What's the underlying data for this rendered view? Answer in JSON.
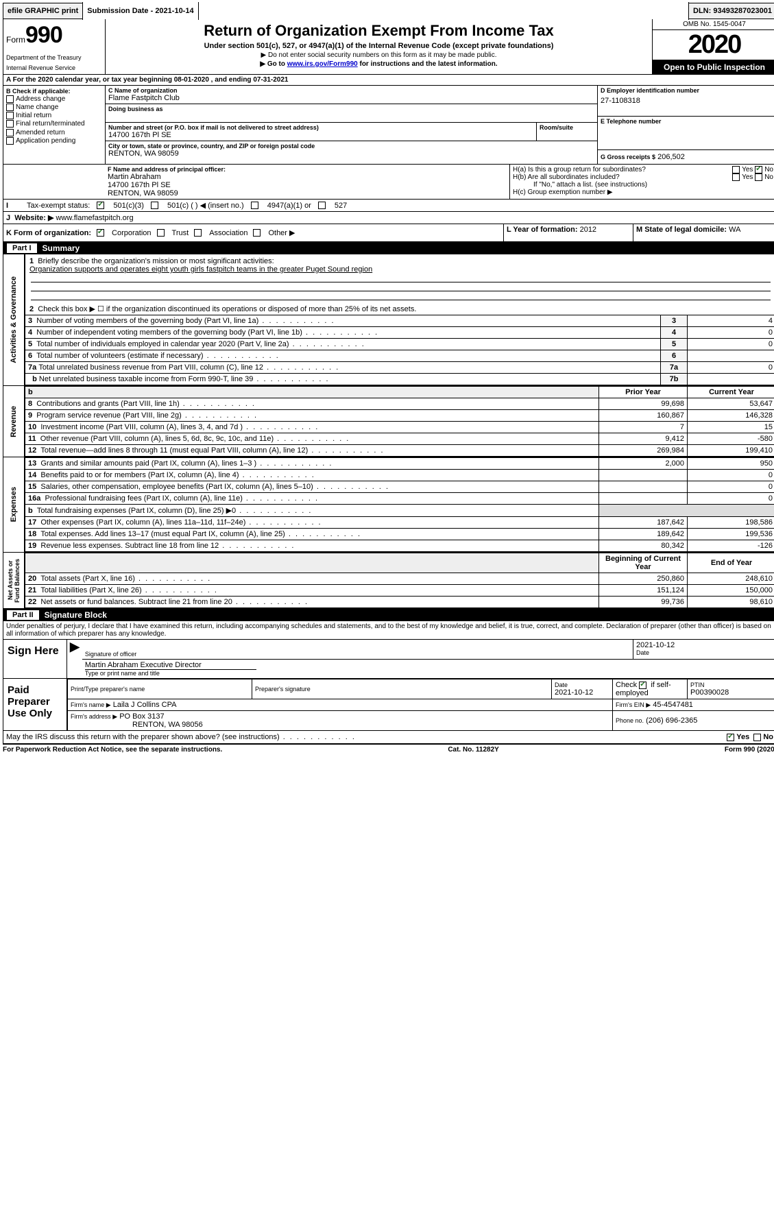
{
  "top": {
    "efile": "efile GRAPHIC print",
    "sub_label": "Submission Date - 2021-10-14",
    "dln": "DLN: 93493287023001"
  },
  "header": {
    "form_word": "Form",
    "form_no": "990",
    "dept1": "Department of the Treasury",
    "dept2": "Internal Revenue Service",
    "title": "Return of Organization Exempt From Income Tax",
    "sub": "Under section 501(c), 527, or 4947(a)(1) of the Internal Revenue Code (except private foundations)",
    "sub2": "▶ Do not enter social security numbers on this form as it may be made public.",
    "sub3a": "▶ Go to ",
    "sub3b": "www.irs.gov/Form990",
    "sub3c": " for instructions and the latest information.",
    "omb": "OMB No. 1545-0047",
    "year": "2020",
    "open": "Open to Public Inspection"
  },
  "a": {
    "line": "A For the 2020 calendar year, or tax year beginning 08-01-2020    , and ending 07-31-2021"
  },
  "b": {
    "label": "B Check if applicable:",
    "opts": [
      "Address change",
      "Name change",
      "Initial return",
      "Final return/terminated",
      "Amended return",
      "Application pending"
    ]
  },
  "c": {
    "label": "C Name of organization",
    "name": "Flame Fastpitch Club",
    "dba_label": "Doing business as",
    "addr_label": "Number and street (or P.O. box if mail is not delivered to street address)",
    "room_label": "Room/suite",
    "addr": "14700 167th Pl SE",
    "city_label": "City or town, state or province, country, and ZIP or foreign postal code",
    "city": "RENTON, WA  98059"
  },
  "d": {
    "label": "D Employer identification number",
    "val": "27-1108318"
  },
  "e": {
    "label": "E Telephone number",
    "val": ""
  },
  "f": {
    "label": "F  Name and address of principal officer:",
    "name": "Martin Abraham",
    "addr": "14700 167th Pl SE",
    "city": "RENTON, WA  98059"
  },
  "g": {
    "label": "G Gross receipts $",
    "val": "206,502"
  },
  "h": {
    "a": "H(a)  Is this a group return for subordinates?",
    "b": "H(b)  Are all subordinates included?",
    "b2": "If \"No,\" attach a list. (see instructions)",
    "c": "H(c)  Group exemption number ▶",
    "yes": "Yes",
    "no": "No"
  },
  "i": {
    "label": "Tax-exempt status:",
    "o1": "501(c)(3)",
    "o2": "501(c) (   ) ◀ (insert no.)",
    "o3": "4947(a)(1) or",
    "o4": "527"
  },
  "j": {
    "label": "Website: ▶",
    "val": "www.flamefastpitch.org"
  },
  "k": {
    "label": "K Form of organization:",
    "o1": "Corporation",
    "o2": "Trust",
    "o3": "Association",
    "o4": "Other ▶"
  },
  "l": {
    "label": "L Year of formation:",
    "val": "2012"
  },
  "m": {
    "label": "M State of legal domicile:",
    "val": "WA"
  },
  "part1": {
    "label": "Part I",
    "title": "Summary"
  },
  "sideA": "Activities & Governance",
  "sideR": "Revenue",
  "sideE": "Expenses",
  "sideN": "Net Assets or Fund Balances",
  "gov": {
    "l1": "Briefly describe the organization's mission or most significant activities:",
    "l1b": "Organization supports and operates eight youth girls fastpitch teams in the greater Puget Sound region",
    "l2": "Check this box ▶ ☐  if the organization discontinued its operations or disposed of more than 25% of its net assets.",
    "l3": "Number of voting members of the governing body (Part VI, line 1a)",
    "l3v": "4",
    "l4": "Number of independent voting members of the governing body (Part VI, line 1b)",
    "l4v": "0",
    "l5": "Total number of individuals employed in calendar year 2020 (Part V, line 2a)",
    "l5v": "0",
    "l6": "Total number of volunteers (estimate if necessary)",
    "l6v": "",
    "l7a": "Total unrelated business revenue from Part VIII, column (C), line 12",
    "l7av": "0",
    "l7b": "Net unrelated business taxable income from Form 990-T, line 39",
    "l7bv": ""
  },
  "cols": {
    "prior": "Prior Year",
    "current": "Current Year",
    "begin": "Beginning of Current Year",
    "end": "End of Year"
  },
  "rev": [
    {
      "n": "8",
      "d": "Contributions and grants (Part VIII, line 1h)",
      "p": "99,698",
      "c": "53,647"
    },
    {
      "n": "9",
      "d": "Program service revenue (Part VIII, line 2g)",
      "p": "160,867",
      "c": "146,328"
    },
    {
      "n": "10",
      "d": "Investment income (Part VIII, column (A), lines 3, 4, and 7d )",
      "p": "7",
      "c": "15"
    },
    {
      "n": "11",
      "d": "Other revenue (Part VIII, column (A), lines 5, 6d, 8c, 9c, 10c, and 11e)",
      "p": "9,412",
      "c": "-580"
    },
    {
      "n": "12",
      "d": "Total revenue—add lines 8 through 11 (must equal Part VIII, column (A), line 12)",
      "p": "269,984",
      "c": "199,410"
    }
  ],
  "exp": [
    {
      "n": "13",
      "d": "Grants and similar amounts paid (Part IX, column (A), lines 1–3 )",
      "p": "2,000",
      "c": "950"
    },
    {
      "n": "14",
      "d": "Benefits paid to or for members (Part IX, column (A), line 4)",
      "p": "",
      "c": "0"
    },
    {
      "n": "15",
      "d": "Salaries, other compensation, employee benefits (Part IX, column (A), lines 5–10)",
      "p": "",
      "c": "0"
    },
    {
      "n": "16a",
      "d": "Professional fundraising fees (Part IX, column (A), line 11e)",
      "p": "",
      "c": "0"
    },
    {
      "n": "b",
      "d": "Total fundraising expenses (Part IX, column (D), line 25) ▶0",
      "p": null,
      "c": null
    },
    {
      "n": "17",
      "d": "Other expenses (Part IX, column (A), lines 11a–11d, 11f–24e)",
      "p": "187,642",
      "c": "198,586"
    },
    {
      "n": "18",
      "d": "Total expenses. Add lines 13–17 (must equal Part IX, column (A), line 25)",
      "p": "189,642",
      "c": "199,536"
    },
    {
      "n": "19",
      "d": "Revenue less expenses. Subtract line 18 from line 12",
      "p": "80,342",
      "c": "-126"
    }
  ],
  "net": [
    {
      "n": "20",
      "d": "Total assets (Part X, line 16)",
      "p": "250,860",
      "c": "248,610"
    },
    {
      "n": "21",
      "d": "Total liabilities (Part X, line 26)",
      "p": "151,124",
      "c": "150,000"
    },
    {
      "n": "22",
      "d": "Net assets or fund balances. Subtract line 21 from line 20",
      "p": "99,736",
      "c": "98,610"
    }
  ],
  "part2": {
    "label": "Part II",
    "title": "Signature Block"
  },
  "sig": {
    "decl": "Under penalties of perjury, I declare that I have examined this return, including accompanying schedules and statements, and to the best of my knowledge and belief, it is true, correct, and complete. Declaration of preparer (other than officer) is based on all information of which preparer has any knowledge.",
    "sign_here": "Sign Here",
    "sig_officer": "Signature of officer",
    "date": "2021-10-12",
    "date_label": "Date",
    "officer": "Martin Abraham  Executive Director",
    "type_name": "Type or print name and title"
  },
  "prep": {
    "label": "Paid Preparer Use Only",
    "c1": "Print/Type preparer's name",
    "c2": "Preparer's signature",
    "c3": "Date",
    "c3v": "2021-10-12",
    "c4a": "Check",
    "c4b": "if self-employed",
    "c5": "PTIN",
    "c5v": "P00390028",
    "firm_label": "Firm's name    ▶",
    "firm": "Laila J Collins CPA",
    "ein_label": "Firm's EIN ▶",
    "ein": "45-4547481",
    "addr_label": "Firm's address ▶",
    "addr1": "PO Box 3137",
    "addr2": "RENTON, WA  98056",
    "phone_label": "Phone no.",
    "phone": "(206) 696-2365"
  },
  "discuss": {
    "q": "May the IRS discuss this return with the preparer shown above? (see instructions)",
    "yes": "Yes",
    "no": "No"
  },
  "footer": {
    "l": "For Paperwork Reduction Act Notice, see the separate instructions.",
    "c": "Cat. No. 11282Y",
    "r": "Form 990 (2020)"
  }
}
